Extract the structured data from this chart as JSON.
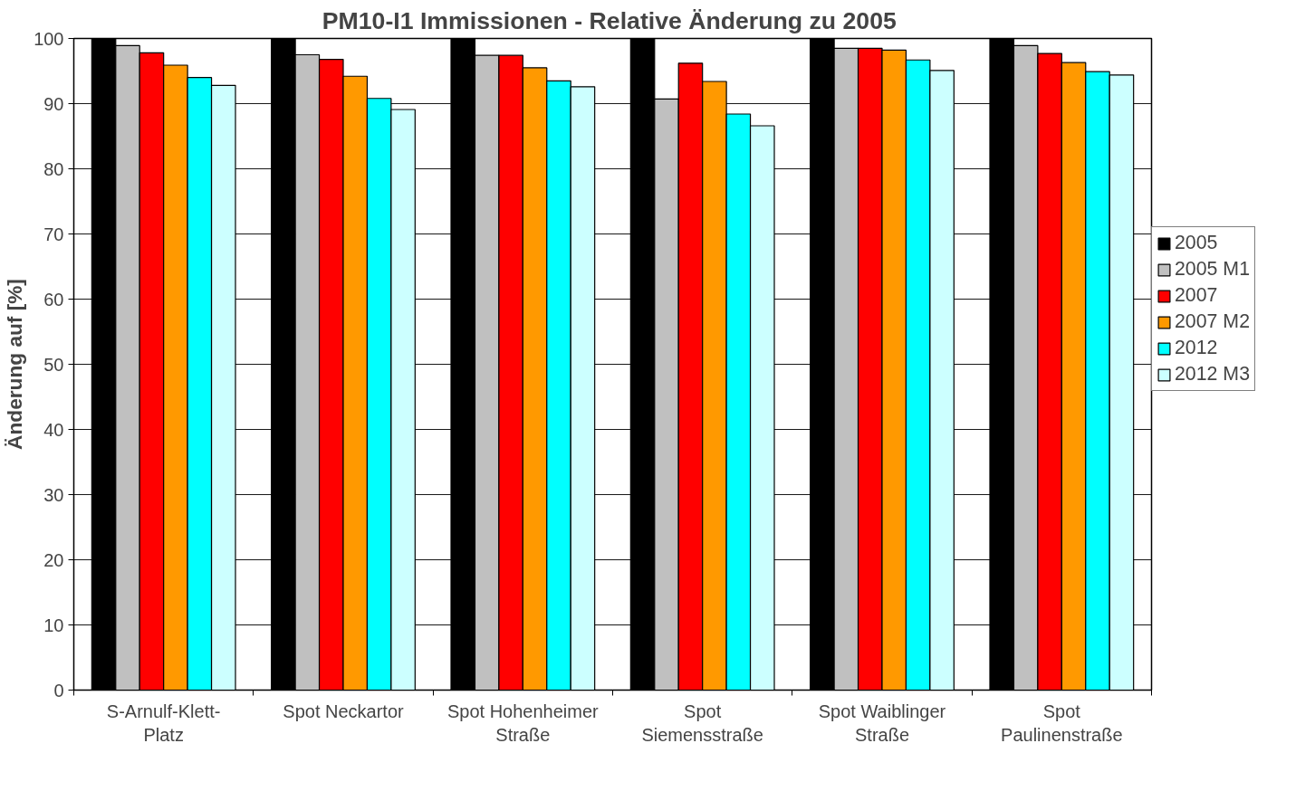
{
  "chart_data": {
    "type": "bar",
    "title": "PM10-I1 Immissionen -  Relative Änderung zu 2005",
    "ylabel": "Änderung auf [%]",
    "categories": [
      "S-Arnulf-Klett-Platz",
      "Spot Neckartor",
      "Spot Hohenheimer Straße",
      "Spot Siemensstraße",
      "Spot Waiblinger Straße",
      "Spot Paulinenstraße"
    ],
    "series": [
      {
        "name": "2005",
        "color": "#000000",
        "values": [
          100,
          100,
          100,
          100,
          100,
          100
        ]
      },
      {
        "name": "2005 M1",
        "color": "#c0c0c0",
        "values": [
          98.9,
          97.5,
          97.4,
          90.7,
          98.5,
          98.9
        ]
      },
      {
        "name": "2007",
        "color": "#ff0000",
        "values": [
          97.8,
          96.8,
          97.4,
          96.2,
          98.5,
          97.7
        ]
      },
      {
        "name": "2007 M2",
        "color": "#ff9900",
        "values": [
          95.9,
          94.2,
          95.5,
          93.4,
          98.2,
          96.3
        ]
      },
      {
        "name": "2012",
        "color": "#00ffff",
        "values": [
          94.0,
          90.8,
          93.5,
          88.4,
          96.7,
          94.9
        ]
      },
      {
        "name": "2012 M3",
        "color": "#ccffff",
        "values": [
          92.8,
          89.1,
          92.6,
          86.6,
          95.1,
          94.4
        ]
      }
    ],
    "ylim": [
      0,
      100
    ],
    "yticks": [
      0,
      10,
      20,
      30,
      40,
      50,
      60,
      70,
      80,
      90,
      100
    ],
    "grid": "y",
    "legend": "right"
  }
}
